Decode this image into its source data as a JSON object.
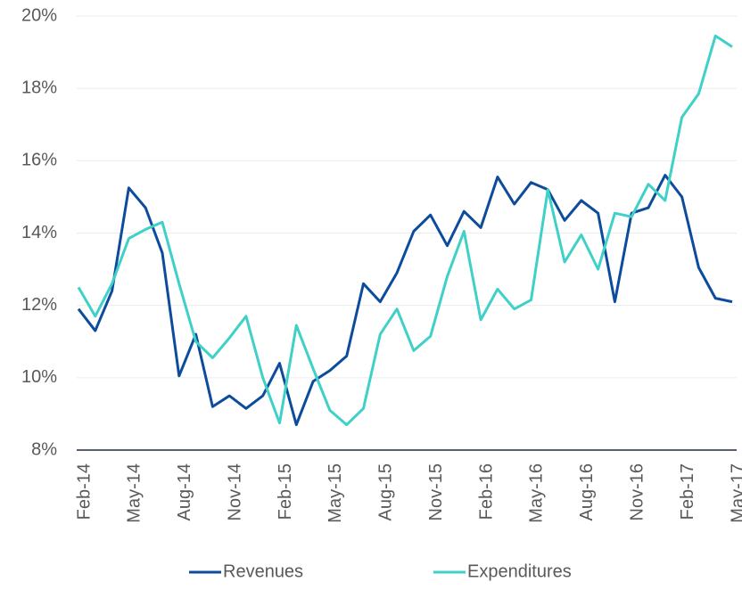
{
  "chart_data": {
    "type": "line",
    "categories": [
      "Feb-14",
      null,
      null,
      "May-14",
      null,
      null,
      "Aug-14",
      null,
      null,
      "Nov-14",
      null,
      null,
      "Feb-15",
      null,
      null,
      "May-15",
      null,
      null,
      "Aug-15",
      null,
      null,
      "Nov-15",
      null,
      null,
      "Feb-16",
      null,
      null,
      "May-16",
      null,
      null,
      "Aug-16",
      null,
      null,
      "Nov-16",
      null,
      null,
      "Feb-17",
      null,
      null,
      "May-17"
    ],
    "series": [
      {
        "name": "Revenues",
        "color": "#0d4c9c",
        "values": [
          11.9,
          11.3,
          12.4,
          15.25,
          14.7,
          13.45,
          10.05,
          11.2,
          9.2,
          9.5,
          9.15,
          9.5,
          10.4,
          8.7,
          9.9,
          10.2,
          10.6,
          12.6,
          12.1,
          12.9,
          14.05,
          14.5,
          13.65,
          14.6,
          14.15,
          15.55,
          14.8,
          15.4,
          15.2,
          14.35,
          14.9,
          14.55,
          12.1,
          14.55,
          14.7,
          15.6,
          15.0,
          13.05,
          12.2,
          12.1
        ]
      },
      {
        "name": "Expenditures",
        "color": "#3fd0c8",
        "values": [
          12.5,
          11.7,
          12.6,
          13.85,
          14.1,
          14.3,
          12.6,
          11.0,
          10.55,
          11.1,
          11.7,
          10.0,
          8.75,
          11.45,
          10.25,
          9.1,
          8.7,
          9.15,
          11.2,
          11.9,
          10.75,
          11.15,
          12.8,
          14.05,
          11.6,
          12.45,
          11.9,
          12.15,
          15.2,
          13.2,
          13.95,
          13.0,
          14.55,
          14.45,
          15.35,
          14.9,
          17.2,
          17.85,
          19.45,
          19.15
        ]
      }
    ],
    "ylim": [
      8,
      20
    ],
    "yticks": [
      {
        "value": 8,
        "label": "8%"
      },
      {
        "value": 10,
        "label": "10%"
      },
      {
        "value": 12,
        "label": "12%"
      },
      {
        "value": 14,
        "label": "14%"
      },
      {
        "value": 16,
        "label": "16%"
      },
      {
        "value": 18,
        "label": "18%"
      },
      {
        "value": 20,
        "label": "20%"
      }
    ],
    "grid": true,
    "legend": "bottom"
  }
}
